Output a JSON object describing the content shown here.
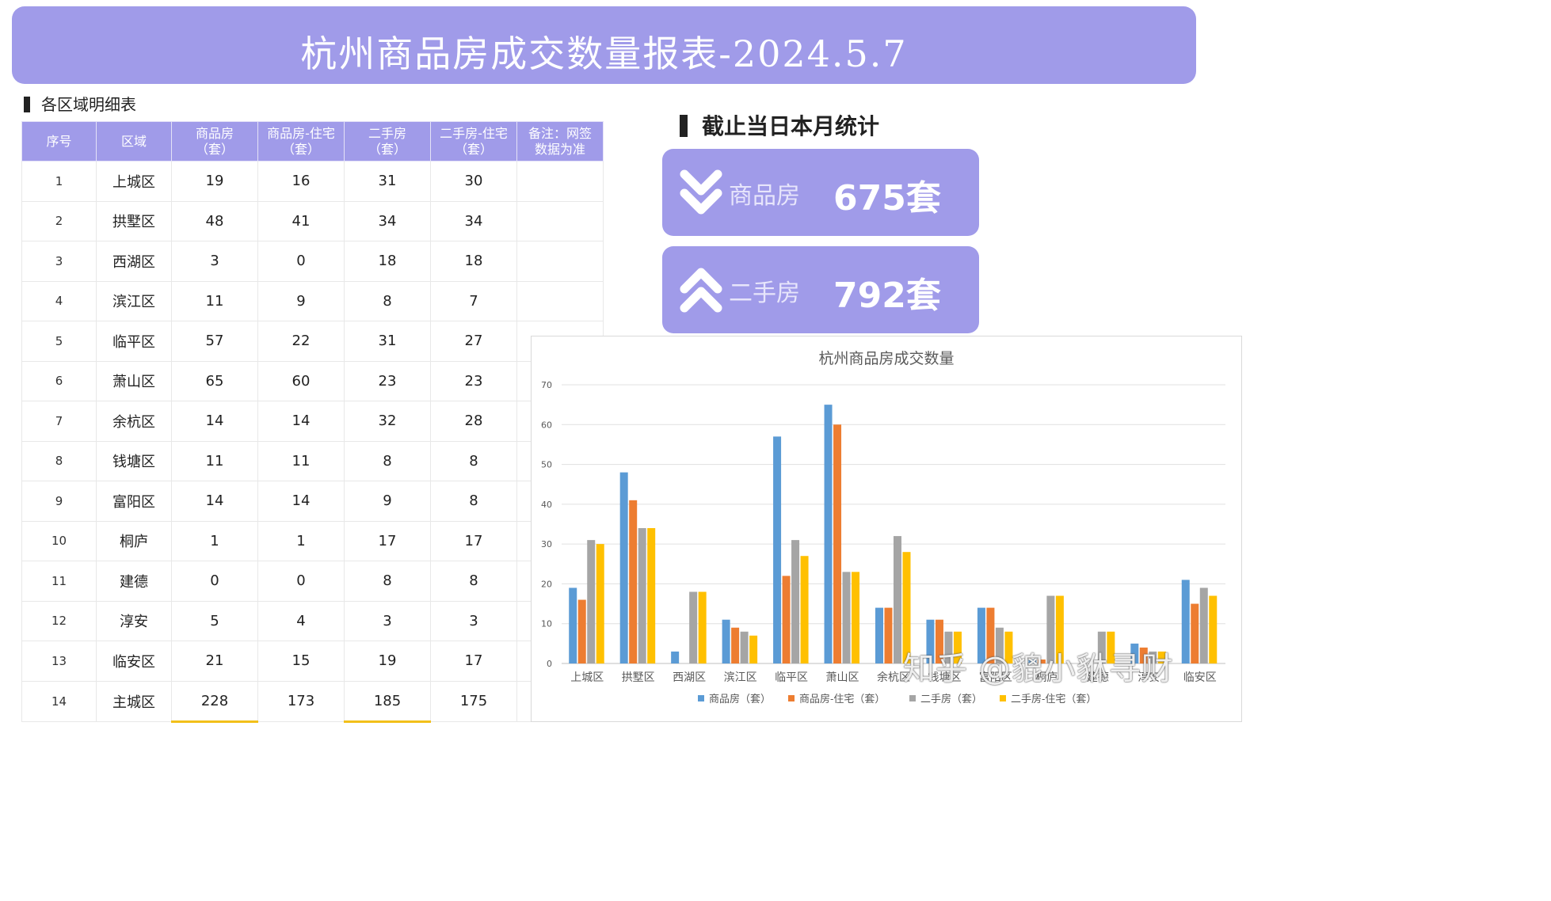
{
  "banner": {
    "title": "杭州商品房成交数量报表-2024.5.7"
  },
  "detail_section": {
    "label": "各区域明细表"
  },
  "table": {
    "headers": [
      "序号",
      "区域",
      "商品房\n（套）",
      "商品房-住宅\n（套）",
      "二手房\n（套）",
      "二手房-住宅\n（套）",
      "备注：网签\n数据为准"
    ],
    "rows": [
      [
        "1",
        "上城区",
        "19",
        "16",
        "31",
        "30",
        ""
      ],
      [
        "2",
        "拱墅区",
        "48",
        "41",
        "34",
        "34",
        ""
      ],
      [
        "3",
        "西湖区",
        "3",
        "0",
        "18",
        "18",
        ""
      ],
      [
        "4",
        "滨江区",
        "11",
        "9",
        "8",
        "7",
        ""
      ],
      [
        "5",
        "临平区",
        "57",
        "22",
        "31",
        "27",
        ""
      ],
      [
        "6",
        "萧山区",
        "65",
        "60",
        "23",
        "23",
        ""
      ],
      [
        "7",
        "余杭区",
        "14",
        "14",
        "32",
        "28",
        ""
      ],
      [
        "8",
        "钱塘区",
        "11",
        "11",
        "8",
        "8",
        ""
      ],
      [
        "9",
        "富阳区",
        "14",
        "14",
        "9",
        "8",
        ""
      ],
      [
        "10",
        "桐庐",
        "1",
        "1",
        "17",
        "17",
        ""
      ],
      [
        "11",
        "建德",
        "0",
        "0",
        "8",
        "8",
        ""
      ],
      [
        "12",
        "淳安",
        "5",
        "4",
        "3",
        "3",
        ""
      ],
      [
        "13",
        "临安区",
        "21",
        "15",
        "19",
        "17",
        ""
      ],
      [
        "14",
        "主城区",
        "228",
        "173",
        "185",
        "175",
        ""
      ]
    ]
  },
  "month_section": {
    "label": "截止当日本月统计"
  },
  "stats": [
    {
      "label": "商品房",
      "value": "675套",
      "icon": "double-chevron-down-icon"
    },
    {
      "label": "二手房",
      "value": "792套",
      "icon": "double-chevron-up-icon"
    }
  ],
  "watermark": "知乎 @貔小貅寻财",
  "chart_data": {
    "type": "bar",
    "title": "杭州商品房成交数量",
    "categories": [
      "上城区",
      "拱墅区",
      "西湖区",
      "滨江区",
      "临平区",
      "萧山区",
      "余杭区",
      "钱塘区",
      "富阳区",
      "桐庐",
      "建德",
      "淳安",
      "临安区"
    ],
    "ylim": [
      0,
      70
    ],
    "yticks": [
      0,
      10,
      20,
      30,
      40,
      50,
      60,
      70
    ],
    "grid": true,
    "legend": "bottom",
    "series": [
      {
        "name": "商品房（套）",
        "color": "#5b9bd5",
        "values": [
          19,
          48,
          3,
          11,
          57,
          65,
          14,
          11,
          14,
          1,
          0,
          5,
          21
        ]
      },
      {
        "name": "商品房-住宅（套）",
        "color": "#ed7d31",
        "values": [
          16,
          41,
          0,
          9,
          22,
          60,
          14,
          11,
          14,
          1,
          0,
          4,
          15
        ]
      },
      {
        "name": "二手房（套）",
        "color": "#a5a5a5",
        "values": [
          31,
          34,
          18,
          8,
          31,
          23,
          32,
          8,
          9,
          17,
          8,
          3,
          19
        ]
      },
      {
        "name": "二手房-住宅（套）",
        "color": "#ffc000",
        "values": [
          30,
          34,
          18,
          7,
          27,
          23,
          28,
          8,
          8,
          17,
          8,
          3,
          17
        ]
      }
    ]
  }
}
